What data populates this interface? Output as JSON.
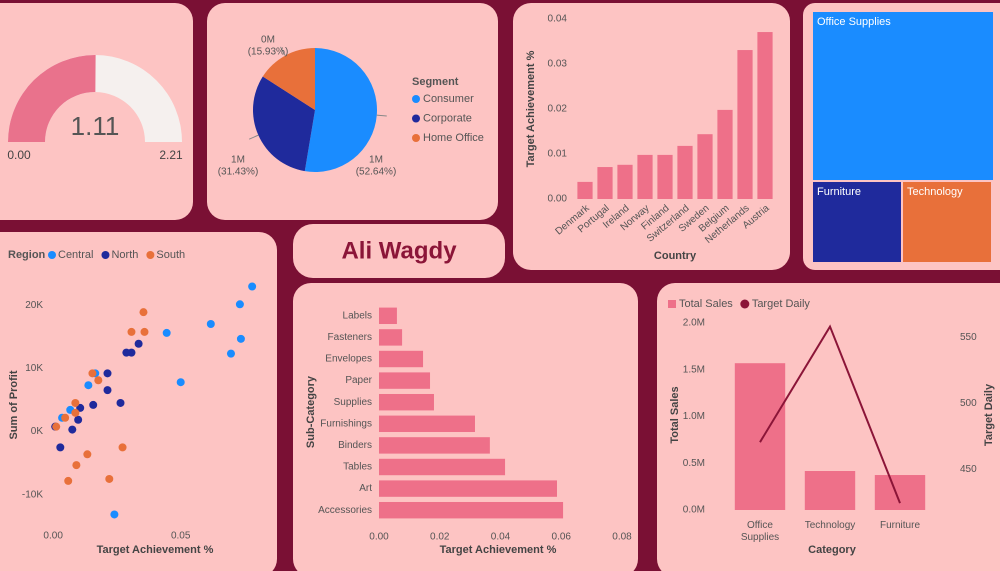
{
  "name_card": {
    "text": "Ali Wagdy"
  },
  "chart_data": [
    {
      "type": "gauge",
      "value": 1.11,
      "ylim": [
        0,
        2.21
      ],
      "yticks": [
        {
          "value": 0,
          "label": "0.00"
        },
        2.21
      ],
      "color": "#e9728c",
      "track_color": "#f5f0ee"
    },
    {
      "type": "pie",
      "legend_title": "Segment",
      "categories": [
        "Consumer",
        "Corporate",
        "Home Office"
      ],
      "values": [
        52.64,
        31.43,
        15.93
      ],
      "value_labels": [
        "(52.64%)",
        "(31.43%)",
        "(15.93%)"
      ],
      "amount_labels": [
        "1M",
        "1M",
        "0M"
      ],
      "colors": [
        "#1a8cff",
        "#1f2a9c",
        "#e8703a"
      ]
    },
    {
      "type": "bar",
      "x_label": "Country",
      "y_label": "Target Achievement %",
      "categories": [
        "Denmark",
        "Portugal",
        "Ireland",
        "Norway",
        "Finland",
        "Switzerland",
        "Sweden",
        "Belgium",
        "Netherlands",
        "Austria"
      ],
      "values": [
        0.0038,
        0.0071,
        0.0076,
        0.0098,
        0.0098,
        0.0118,
        0.0144,
        0.0198,
        0.0331,
        0.0371
      ],
      "color": "#ee7089",
      "ylim": [
        0,
        0.04
      ],
      "yticks": [
        {
          "value": 0,
          "label": "0.00"
        },
        0.01,
        0.02,
        0.03,
        0.04
      ],
      "grid": false
    },
    {
      "type": "treemap",
      "categories": [
        "Office Supplies",
        "Furniture",
        "Technology"
      ],
      "values": [
        68,
        16,
        16
      ],
      "colors": [
        "#1a8cff",
        "#1f2a9c",
        "#e8703a"
      ]
    },
    {
      "type": "scatter",
      "legend_title": "Region",
      "x_label": "Target Achievement %",
      "y_label": "Sum of Profit",
      "xlim": [
        -0.013,
        0.085
      ],
      "ylim": [
        -14000,
        24000
      ],
      "xticks": [
        {
          "value": 0,
          "label": "0.00"
        },
        0.05
      ],
      "yticks": [
        {
          "value": -10000,
          "label": "-10K"
        },
        {
          "value": 0,
          "label": "0K"
        },
        {
          "value": 10000,
          "label": "10K"
        },
        {
          "value": 20000,
          "label": "20K"
        }
      ],
      "series": [
        {
          "name": "Central",
          "color": "#1a8cff",
          "x": [
            0.078,
            0.0732,
            0.0618,
            0.0736,
            0.0445,
            0.0697,
            0.05,
            0.024,
            0.0165,
            0.0138,
            0.0067,
            0.0035
          ],
          "values": [
            22970,
            20156,
            17031,
            14688,
            15625,
            12344,
            7813,
            -13125,
            9219,
            7344,
            3438,
            2188
          ]
        },
        {
          "name": "North",
          "color": "#1f2a9c",
          "x": [
            0.0335,
            0.0307,
            0.0287,
            0.0213,
            0.0213,
            0.0264,
            0.0157,
            0.0106,
            0.0098,
            0.0028,
            0.0008,
            0.0075
          ],
          "values": [
            13906,
            12500,
            12500,
            9219,
            6563,
            4531,
            4219,
            3750,
            1875,
            -2500,
            781,
            313
          ]
        },
        {
          "name": "South",
          "color": "#e8703a",
          "x": [
            0.0354,
            0.0307,
            0.0358,
            0.0154,
            0.0177,
            0.0087,
            0.0087,
            0.0047,
            0.0012,
            0.0272,
            0.0134,
            0.0091,
            0.0059,
            0.022
          ],
          "values": [
            18906,
            15781,
            15781,
            9219,
            8125,
            4531,
            2969,
            2188,
            781,
            -2500,
            -3594,
            -5313,
            -7813,
            -7500
          ]
        }
      ]
    },
    {
      "type": "hbar",
      "x_label": "Target Achievement %",
      "y_label": "Sub-Category",
      "categories": [
        "Labels",
        "Fasteners",
        "Envelopes",
        "Paper",
        "Supplies",
        "Furnishings",
        "Binders",
        "Tables",
        "Art",
        "Accessories"
      ],
      "values": [
        0.0059,
        0.0076,
        0.0145,
        0.0168,
        0.0181,
        0.0316,
        0.0365,
        0.0415,
        0.0586,
        0.0606
      ],
      "color": "#ee7089",
      "xlim": [
        0,
        0.08
      ],
      "xticks": [
        {
          "value": 0,
          "label": "0.00"
        },
        0.02,
        0.04,
        0.06,
        0.08
      ]
    },
    {
      "type": "combo",
      "x_label": "Category",
      "y_label": "Total Sales",
      "y2_label": "Target Daily",
      "categories": [
        "Office Supplies",
        "Technology",
        "Furniture"
      ],
      "ylim": [
        0,
        2000000
      ],
      "yticks": [
        {
          "value": 0,
          "label": "0.0M"
        },
        {
          "value": 500000,
          "label": "0.5M"
        },
        {
          "value": 1000000,
          "label": "1.0M"
        },
        {
          "value": 1500000,
          "label": "1.5M"
        },
        {
          "value": 2000000,
          "label": "2.0M"
        }
      ],
      "y2lim": [
        419,
        561
      ],
      "y2ticks": [
        450,
        500,
        550
      ],
      "series": [
        {
          "name": "Total Sales",
          "color": "#ee7089",
          "values": [
            1570000,
            417000,
            374000
          ]
        },
        {
          "name": "Target Daily",
          "color": "#8b1538",
          "values": [
            470.5,
            558.3,
            424.2
          ],
          "axis": "y2"
        }
      ]
    }
  ]
}
